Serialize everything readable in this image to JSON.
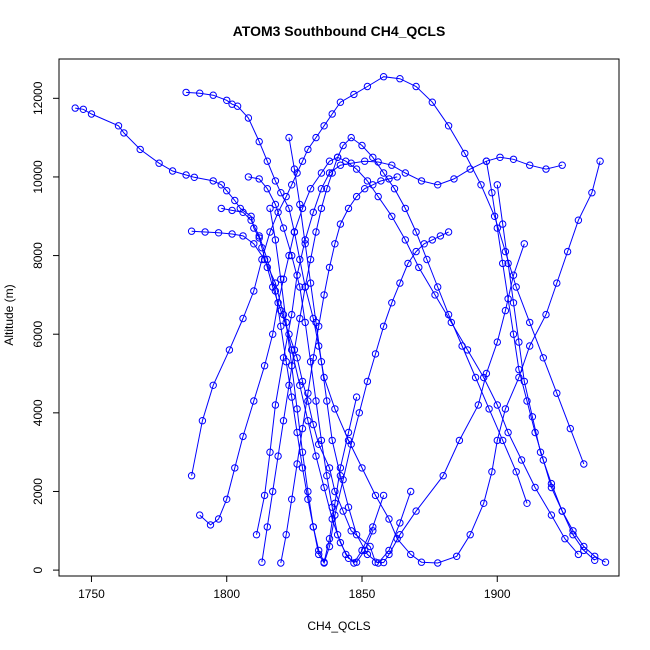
{
  "chart_data": {
    "type": "line",
    "title": "ATOM3 Southbound CH4_QCLS",
    "xlabel": "CH4_QCLS",
    "ylabel": "Altitude (m)",
    "xlim": [
      1738,
      1945
    ],
    "ylim": [
      -150,
      13000
    ],
    "xticks": [
      1750,
      1800,
      1850,
      1900
    ],
    "yticks": [
      0,
      2000,
      4000,
      6000,
      8000,
      10000,
      12000
    ],
    "grid": false,
    "line_color": "#0000ff",
    "marker": "open-circle",
    "series": [
      {
        "x": [
          1744,
          1747,
          1750,
          1760,
          1762,
          1768,
          1775,
          1780,
          1785,
          1788,
          1795,
          1798,
          1800,
          1803,
          1805,
          1809,
          1810,
          1812,
          1813,
          1815,
          1817,
          1820,
          1823,
          1826,
          1828,
          1830,
          1832,
          1834,
          1838,
          1840,
          1843,
          1846,
          1853,
          1855,
          1858,
          1860,
          1864,
          1870,
          1880,
          1886,
          1893,
          1896,
          1900,
          1903,
          1906,
          1910
        ],
        "y": [
          11750,
          11720,
          11600,
          11300,
          11120,
          10700,
          10350,
          10150,
          10050,
          9990,
          9900,
          9800,
          9650,
          9400,
          9200,
          9000,
          8700,
          8450,
          8200,
          7700,
          7200,
          6600,
          6000,
          5400,
          4800,
          4300,
          3700,
          3200,
          2600,
          2000,
          1500,
          1000,
          600,
          200,
          190,
          400,
          900,
          1500,
          2400,
          3300,
          4200,
          5000,
          5800,
          6600,
          7500,
          8300
        ]
      },
      {
        "x": [
          1785,
          1790,
          1795,
          1800,
          1802,
          1804,
          1808,
          1812,
          1815,
          1818,
          1820,
          1823,
          1825,
          1827,
          1829,
          1832,
          1834,
          1836,
          1840,
          1845,
          1850,
          1855,
          1860,
          1863,
          1868,
          1872,
          1878,
          1885,
          1890,
          1895,
          1898,
          1900,
          1903,
          1908,
          1912,
          1918,
          1922,
          1926,
          1930,
          1935,
          1938
        ],
        "y": [
          12150,
          12130,
          12080,
          11950,
          11850,
          11800,
          11500,
          10900,
          10400,
          9900,
          9600,
          9200,
          8600,
          7900,
          7200,
          6400,
          5700,
          4900,
          4100,
          3300,
          2600,
          1900,
          1300,
          800,
          400,
          200,
          180,
          350,
          900,
          1700,
          2500,
          3300,
          4100,
          4900,
          5700,
          6500,
          7300,
          8100,
          8900,
          9600,
          10400
        ]
      },
      {
        "x": [
          1787,
          1791,
          1795,
          1801,
          1806,
          1810,
          1813,
          1816,
          1819,
          1822,
          1824,
          1826,
          1828,
          1830,
          1833,
          1836,
          1839,
          1842,
          1847,
          1852,
          1858,
          1864,
          1870,
          1876,
          1882,
          1888,
          1894,
          1899,
          1903,
          1907,
          1912,
          1917,
          1922,
          1927,
          1932
        ],
        "y": [
          2400,
          3800,
          4700,
          5600,
          6400,
          7100,
          7900,
          8600,
          9100,
          9500,
          9800,
          10100,
          10400,
          10700,
          11000,
          11300,
          11600,
          11900,
          12100,
          12300,
          12550,
          12500,
          12300,
          11900,
          11300,
          10600,
          9800,
          9000,
          8100,
          7200,
          6300,
          5400,
          4500,
          3600,
          2700
        ]
      },
      {
        "x": [
          1790,
          1794,
          1797,
          1800,
          1803,
          1806,
          1810,
          1814,
          1817,
          1819,
          1821,
          1823,
          1825,
          1828,
          1831,
          1835,
          1838,
          1841,
          1844,
          1848,
          1852,
          1856,
          1861,
          1866,
          1871,
          1877,
          1883,
          1889,
          1895,
          1900,
          1904,
          1909,
          1914,
          1920,
          1925,
          1930
        ],
        "y": [
          1400,
          1150,
          1300,
          1800,
          2600,
          3400,
          4300,
          5200,
          6000,
          6800,
          7400,
          8000,
          8600,
          9200,
          9700,
          10100,
          10400,
          10500,
          10400,
          10200,
          9900,
          9500,
          9000,
          8400,
          7700,
          7000,
          6300,
          5600,
          4900,
          4200,
          3500,
          2800,
          2100,
          1400,
          800,
          400
        ]
      },
      {
        "x": [
          1813,
          1815,
          1817,
          1819,
          1821,
          1823,
          1825,
          1827,
          1829,
          1831,
          1833,
          1835,
          1837,
          1839,
          1841,
          1843,
          1846,
          1850,
          1854,
          1858,
          1862,
          1866,
          1870,
          1874,
          1878,
          1882,
          1887,
          1892,
          1897,
          1902,
          1907,
          1911
        ],
        "y": [
          200,
          1100,
          2000,
          2900,
          3800,
          4700,
          5600,
          6400,
          7200,
          7900,
          8600,
          9200,
          9700,
          10100,
          10500,
          10800,
          11000,
          10800,
          10500,
          10100,
          9700,
          9200,
          8600,
          7900,
          7200,
          6500,
          5700,
          4900,
          4100,
          3300,
          2500,
          1700
        ]
      },
      {
        "x": [
          1811,
          1814,
          1816,
          1818,
          1821,
          1824,
          1826,
          1829,
          1832,
          1835,
          1838,
          1842,
          1846,
          1851,
          1856,
          1861,
          1866,
          1872,
          1878,
          1884,
          1890,
          1896,
          1901,
          1906,
          1912,
          1918,
          1924
        ],
        "y": [
          900,
          1900,
          3000,
          4200,
          5400,
          6500,
          7500,
          8400,
          9100,
          9700,
          10100,
          10300,
          10350,
          10400,
          10380,
          10300,
          10100,
          9900,
          9800,
          9950,
          10200,
          10400,
          10500,
          10450,
          10300,
          10200,
          10300
        ]
      },
      {
        "x": [
          1816,
          1818,
          1820,
          1822,
          1824,
          1826,
          1828,
          1830,
          1832,
          1834,
          1836,
          1838,
          1840,
          1843,
          1846,
          1849,
          1852,
          1855,
          1858,
          1861,
          1864,
          1867,
          1870,
          1873,
          1876,
          1879,
          1882
        ],
        "y": [
          9200,
          8400,
          7400,
          6300,
          5200,
          4100,
          3000,
          2000,
          1100,
          400,
          180,
          600,
          1400,
          2300,
          3200,
          4000,
          4800,
          5500,
          6200,
          6800,
          7300,
          7800,
          8100,
          8300,
          8400,
          8500,
          8600
        ]
      },
      {
        "x": [
          1798,
          1802,
          1806,
          1809,
          1812,
          1815,
          1818,
          1820,
          1822,
          1824,
          1826,
          1828,
          1830,
          1832,
          1834,
          1836,
          1838,
          1840,
          1842,
          1845,
          1848
        ],
        "y": [
          9200,
          9150,
          9100,
          8900,
          8500,
          7900,
          7100,
          6200,
          5300,
          4400,
          3500,
          2600,
          1800,
          1100,
          500,
          200,
          800,
          1700,
          2600,
          3500,
          4400
        ]
      },
      {
        "x": [
          1787,
          1792,
          1797,
          1802,
          1806,
          1810,
          1814,
          1818,
          1821,
          1824,
          1827,
          1830,
          1833,
          1836,
          1839,
          1842,
          1845,
          1848,
          1851,
          1854
        ],
        "y": [
          8620,
          8600,
          8580,
          8550,
          8500,
          8300,
          7900,
          7300,
          6500,
          5600,
          4700,
          3800,
          2900,
          2100,
          1300,
          700,
          300,
          200,
          500,
          1000
        ]
      },
      {
        "x": [
          1808,
          1812,
          1815,
          1818,
          1821,
          1824,
          1827,
          1829,
          1831,
          1833,
          1835,
          1837,
          1839,
          1841,
          1844,
          1847,
          1850,
          1854,
          1858
        ],
        "y": [
          10000,
          9950,
          9700,
          9300,
          8700,
          8000,
          7200,
          6300,
          5300,
          4300,
          3300,
          2400,
          1600,
          900,
          400,
          180,
          500,
          1100,
          1900
        ]
      },
      {
        "x": [
          1820,
          1822,
          1824,
          1826,
          1828,
          1830,
          1832,
          1834,
          1836,
          1838,
          1840,
          1842,
          1845,
          1848,
          1851,
          1854,
          1857,
          1860,
          1863
        ],
        "y": [
          180,
          900,
          1800,
          2700,
          3600,
          4500,
          5400,
          6200,
          7000,
          7700,
          8300,
          8800,
          9200,
          9500,
          9700,
          9800,
          9900,
          9950,
          10000
        ]
      },
      {
        "x": [
          1823,
          1825,
          1827,
          1829,
          1831,
          1833,
          1835,
          1837,
          1839,
          1842,
          1845,
          1848,
          1852,
          1856,
          1860,
          1864,
          1868
        ],
        "y": [
          11000,
          10200,
          9300,
          8300,
          7300,
          6300,
          5300,
          4300,
          3300,
          2400,
          1600,
          900,
          400,
          180,
          500,
          1200,
          2000
        ]
      },
      {
        "x": [
          1896,
          1898,
          1900,
          1902,
          1904,
          1906,
          1908,
          1911,
          1914,
          1917,
          1920,
          1924,
          1928,
          1932,
          1936,
          1940
        ],
        "y": [
          10400,
          9600,
          8700,
          7800,
          6900,
          6000,
          5100,
          4300,
          3500,
          2800,
          2100,
          1500,
          1000,
          600,
          350,
          200
        ]
      },
      {
        "x": [
          1900,
          1902,
          1904,
          1906,
          1908,
          1910,
          1913,
          1916,
          1920,
          1924,
          1928,
          1932,
          1936
        ],
        "y": [
          9800,
          8800,
          7800,
          6800,
          5800,
          4800,
          3900,
          3000,
          2200,
          1500,
          900,
          500,
          250
        ]
      }
    ]
  }
}
